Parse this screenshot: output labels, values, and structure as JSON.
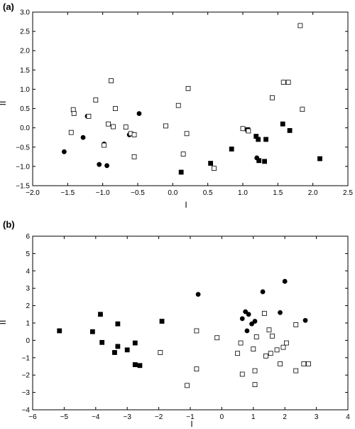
{
  "chart_data": [
    {
      "panel_label": "(a)",
      "type": "scatter",
      "xlabel": "I",
      "ylabel": "II",
      "xlim": [
        -2.0,
        2.5
      ],
      "ylim": [
        -1.5,
        3.0
      ],
      "xticks": [
        "−2.0",
        "−1.5",
        "−1.0",
        "−0.5",
        "0.0",
        "0.5",
        "1.0",
        "1.5",
        "2.0",
        "2.5"
      ],
      "yticks": [
        "−1.5",
        "−1.0",
        "−0.5",
        "0.0",
        "0.5",
        "1.0",
        "1.5",
        "2.0",
        "2.5",
        "3.0"
      ],
      "series": [
        {
          "marker": "filled-circle",
          "points": [
            [
              -1.55,
              -0.62
            ],
            [
              -1.28,
              -0.25
            ],
            [
              -1.22,
              0.3
            ],
            [
              -1.05,
              -0.95
            ],
            [
              -0.98,
              -0.42
            ],
            [
              -0.94,
              -0.98
            ],
            [
              -0.62,
              -0.18
            ],
            [
              -0.48,
              0.37
            ],
            [
              1.2,
              -0.78
            ]
          ]
        },
        {
          "marker": "filled-square",
          "points": [
            [
              0.12,
              -1.15
            ],
            [
              0.54,
              -0.92
            ],
            [
              0.84,
              -0.55
            ],
            [
              1.07,
              -0.05
            ],
            [
              1.19,
              -0.22
            ],
            [
              1.22,
              -0.3
            ],
            [
              1.23,
              -0.85
            ],
            [
              1.31,
              -0.87
            ],
            [
              1.33,
              -0.3
            ],
            [
              1.57,
              0.1
            ],
            [
              1.67,
              -0.07
            ],
            [
              2.1,
              -0.8
            ]
          ]
        },
        {
          "marker": "open-square",
          "points": [
            [
              -1.45,
              -0.12
            ],
            [
              -1.42,
              0.47
            ],
            [
              -1.41,
              0.37
            ],
            [
              -1.2,
              0.3
            ],
            [
              -1.1,
              0.72
            ],
            [
              -0.98,
              -0.45
            ],
            [
              -0.92,
              0.1
            ],
            [
              -0.88,
              1.22
            ],
            [
              -0.85,
              0.03
            ],
            [
              -0.82,
              0.5
            ],
            [
              -0.67,
              0.02
            ],
            [
              -0.6,
              -0.15
            ],
            [
              -0.55,
              -0.18
            ],
            [
              -0.55,
              -0.75
            ],
            [
              -0.1,
              0.05
            ],
            [
              0.08,
              0.58
            ],
            [
              0.15,
              -0.68
            ],
            [
              0.2,
              -0.15
            ],
            [
              0.22,
              1.02
            ],
            [
              0.59,
              -1.05
            ],
            [
              1.0,
              -0.02
            ],
            [
              1.08,
              -0.08
            ],
            [
              1.42,
              0.78
            ],
            [
              1.58,
              1.18
            ],
            [
              1.65,
              1.18
            ],
            [
              1.82,
              2.65
            ],
            [
              1.85,
              0.48
            ]
          ]
        }
      ]
    },
    {
      "panel_label": "(b)",
      "type": "scatter",
      "xlabel": "I",
      "ylabel": "II",
      "xlim": [
        -6,
        4
      ],
      "ylim": [
        -4,
        6
      ],
      "xticks": [
        "−6",
        "−5",
        "−4",
        "−3",
        "−2",
        "−1",
        "0",
        "1",
        "2",
        "3",
        "4"
      ],
      "yticks": [
        "−4",
        "−3",
        "−2",
        "−1",
        "0",
        "1",
        "2",
        "3",
        "4",
        "5",
        "6"
      ],
      "series": [
        {
          "marker": "filled-square",
          "points": [
            [
              -5.15,
              0.55
            ],
            [
              -4.1,
              0.5
            ],
            [
              -3.85,
              1.5
            ],
            [
              -3.8,
              -0.12
            ],
            [
              -3.4,
              -0.7
            ],
            [
              -3.3,
              -0.35
            ],
            [
              -3.3,
              0.95
            ],
            [
              -3.0,
              -0.55
            ],
            [
              -2.75,
              -1.4
            ],
            [
              -2.75,
              -0.15
            ],
            [
              -2.6,
              -1.45
            ],
            [
              -1.9,
              1.1
            ]
          ]
        },
        {
          "marker": "filled-circle",
          "points": [
            [
              -0.75,
              2.65
            ],
            [
              0.65,
              1.25
            ],
            [
              0.75,
              1.65
            ],
            [
              0.8,
              0.55
            ],
            [
              0.85,
              1.5
            ],
            [
              0.95,
              0.95
            ],
            [
              1.05,
              1.1
            ],
            [
              1.3,
              2.8
            ],
            [
              1.85,
              1.6
            ],
            [
              2.0,
              3.4
            ],
            [
              2.65,
              1.15
            ]
          ]
        },
        {
          "marker": "open-square",
          "points": [
            [
              -1.95,
              -0.7
            ],
            [
              -1.1,
              -2.6
            ],
            [
              -0.8,
              0.55
            ],
            [
              -0.8,
              -1.65
            ],
            [
              -0.15,
              0.15
            ],
            [
              0.5,
              -0.75
            ],
            [
              0.6,
              -0.15
            ],
            [
              0.65,
              -1.95
            ],
            [
              1.0,
              -0.5
            ],
            [
              1.05,
              -1.75
            ],
            [
              1.05,
              -2.55
            ],
            [
              1.1,
              0.2
            ],
            [
              1.35,
              1.55
            ],
            [
              1.4,
              -0.9
            ],
            [
              1.5,
              0.6
            ],
            [
              1.55,
              -0.75
            ],
            [
              1.6,
              0.25
            ],
            [
              1.75,
              -0.55
            ],
            [
              1.85,
              -1.35
            ],
            [
              1.95,
              -0.4
            ],
            [
              2.05,
              -0.15
            ],
            [
              2.35,
              -1.75
            ],
            [
              2.6,
              -1.35
            ],
            [
              2.75,
              -1.35
            ],
            [
              2.35,
              0.9
            ]
          ]
        }
      ]
    }
  ]
}
